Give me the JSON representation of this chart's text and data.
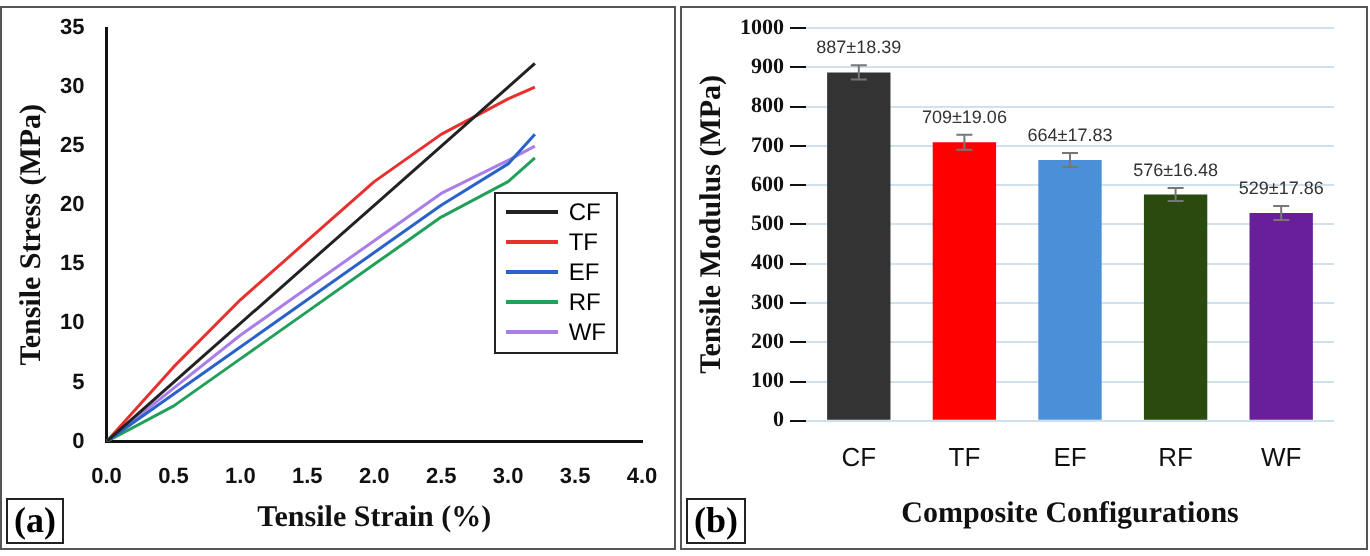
{
  "chart_data": [
    {
      "type": "line",
      "xlabel": "Tensile Strain (%)",
      "ylabel": "Tensile Stress (MPa)",
      "annotations": [
        "(a)"
      ],
      "xlim": [
        0,
        4
      ],
      "xticks": [
        {
          "value": 0,
          "label": "0.0"
        },
        0.5,
        {
          "value": 1,
          "label": "1.0"
        },
        1.5,
        {
          "value": 2,
          "label": "2.0"
        },
        2.5,
        {
          "value": 3,
          "label": "3.0"
        },
        3.5,
        {
          "value": 4,
          "label": "4.0"
        }
      ],
      "ylim": [
        0,
        35
      ],
      "yticks": [
        0,
        5,
        10,
        15,
        20,
        25,
        30,
        35
      ],
      "grid": false,
      "legend": "right",
      "marker": "none",
      "line_style": "solid",
      "series": [
        {
          "name": "CF",
          "color": "#222222",
          "x": [
            0,
            1,
            2,
            3.2
          ],
          "values": [
            0,
            10,
            20,
            32
          ]
        },
        {
          "name": "TF",
          "color": "#e8302f",
          "x": [
            0,
            0.5,
            1,
            1.5,
            2,
            2.5,
            3,
            3.2
          ],
          "values": [
            0,
            6.3,
            12,
            17,
            22,
            26,
            29,
            30
          ]
        },
        {
          "name": "EF",
          "color": "#2a62c9",
          "x": [
            0,
            0.5,
            1,
            1.5,
            2,
            2.5,
            3,
            3.2
          ],
          "values": [
            0,
            4,
            8,
            12,
            16,
            20,
            23.5,
            26
          ]
        },
        {
          "name": "RF",
          "color": "#22a05a",
          "x": [
            0,
            0.5,
            1,
            1.5,
            2,
            2.5,
            3,
            3.2
          ],
          "values": [
            0,
            3,
            7,
            11,
            15,
            19,
            22,
            24
          ]
        },
        {
          "name": "WF",
          "color": "#a97ee8",
          "x": [
            0,
            0.5,
            1,
            1.5,
            2,
            2.5,
            3,
            3.2
          ],
          "values": [
            0,
            4.5,
            9,
            13,
            17,
            21,
            23.8,
            25
          ]
        }
      ]
    },
    {
      "type": "bar",
      "xlabel": "Composite Configurations",
      "ylabel": "Tensile Modulus (MPa)",
      "annotations": [
        "(b)"
      ],
      "categories": [
        "CF",
        "TF",
        "EF",
        "RF",
        "WF"
      ],
      "values": [
        887,
        709,
        664,
        576,
        529
      ],
      "errors": [
        18.39,
        19.06,
        17.83,
        16.48,
        17.86
      ],
      "value_labels": [
        "887±18.39",
        "709±19.06",
        "664±17.83",
        "576±16.48",
        "529±17.86"
      ],
      "colors": [
        "#333333",
        "#ff0000",
        "#4a90d9",
        "#2a4a10",
        "#6a1f9a"
      ],
      "ylim": [
        0,
        1000
      ],
      "yticks": [
        0,
        100,
        200,
        300,
        400,
        500,
        600,
        700,
        800,
        900,
        1000
      ],
      "grid": "y",
      "legend": false
    }
  ]
}
